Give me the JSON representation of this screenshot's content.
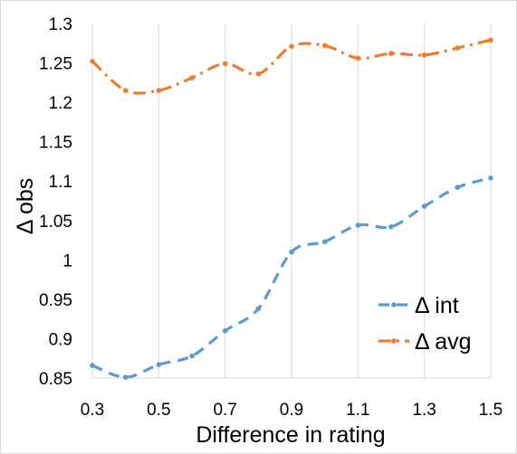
{
  "chart_data": {
    "type": "line",
    "title": "",
    "xlabel": "Difference in rating",
    "ylabel": "Δ obs",
    "xlim": [
      0.3,
      1.5
    ],
    "ylim": [
      0.85,
      1.3
    ],
    "x_ticks": [
      "0.3",
      "0.5",
      "0.7",
      "0.9",
      "1.1",
      "1.3",
      "1.5"
    ],
    "y_ticks": [
      "0.85",
      "0.9",
      "0.95",
      "1",
      "1.05",
      "1.1",
      "1.15",
      "1.2",
      "1.25",
      "1.3"
    ],
    "grid": "vertical",
    "legend_position": "bottom-right",
    "x": [
      0.3,
      0.4,
      0.5,
      0.6,
      0.7,
      0.8,
      0.9,
      1.0,
      1.1,
      1.2,
      1.3,
      1.4,
      1.5
    ],
    "series": [
      {
        "name": "Δ int",
        "color": "#5b9bd5",
        "values": [
          0.866,
          0.851,
          0.867,
          0.878,
          0.91,
          0.938,
          1.01,
          1.023,
          1.044,
          1.042,
          1.068,
          1.092,
          1.104
        ]
      },
      {
        "name": "Δ avg",
        "color": "#ed7d31",
        "values": [
          1.252,
          1.215,
          1.215,
          1.231,
          1.249,
          1.236,
          1.271,
          1.272,
          1.256,
          1.262,
          1.26,
          1.269,
          1.279
        ]
      }
    ]
  }
}
